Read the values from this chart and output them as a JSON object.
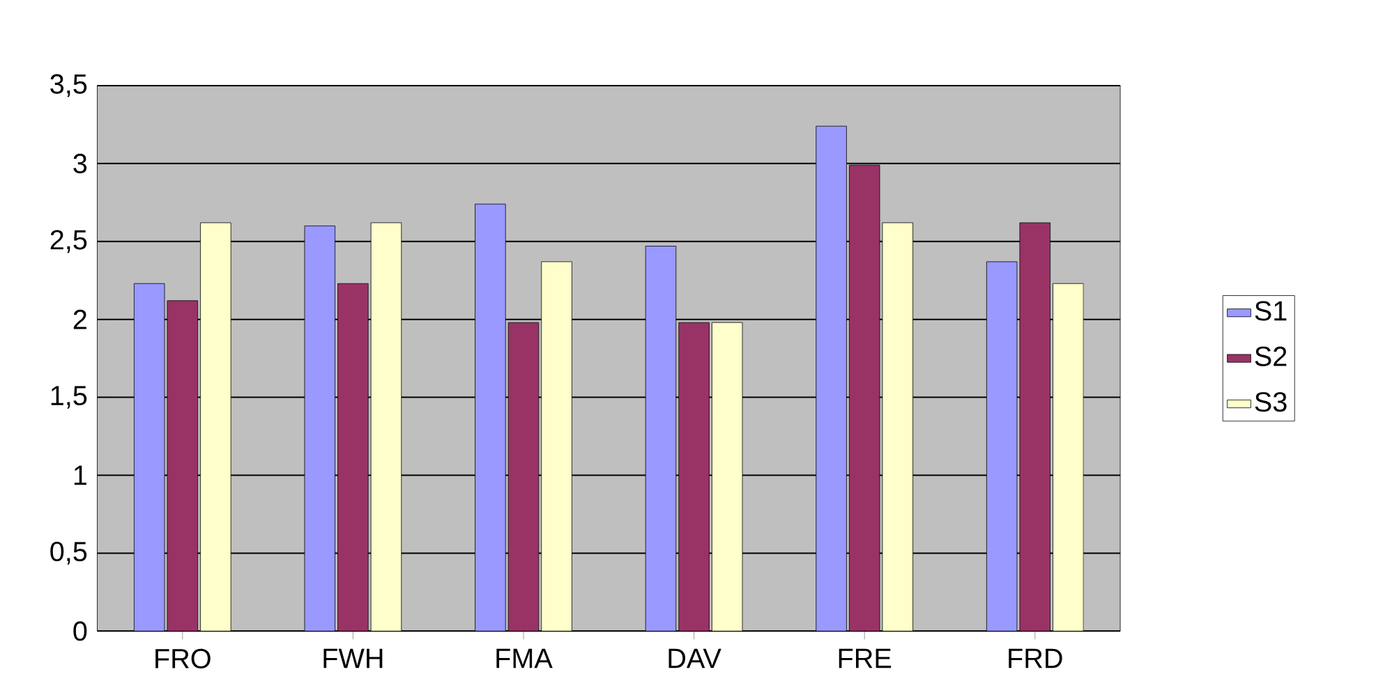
{
  "chart_data": {
    "type": "bar",
    "categories": [
      "FRO",
      "FWH",
      "FMA",
      "DAV",
      "FRE",
      "FRD"
    ],
    "series": [
      {
        "name": "S1",
        "color": "#9999ff",
        "values": [
          2.23,
          2.6,
          2.74,
          2.47,
          3.24,
          2.37
        ]
      },
      {
        "name": "S2",
        "color": "#993366",
        "values": [
          2.12,
          2.23,
          1.98,
          1.98,
          2.99,
          2.62
        ]
      },
      {
        "name": "S3",
        "color": "#ffffcc",
        "values": [
          2.62,
          2.62,
          2.37,
          1.98,
          2.62,
          2.23
        ]
      }
    ],
    "ylim": [
      0,
      3.5
    ],
    "yticks": [
      {
        "value": 0,
        "label": "0"
      },
      {
        "value": 0.5,
        "label": "0,5"
      },
      {
        "value": 1,
        "label": "1"
      },
      {
        "value": 1.5,
        "label": "1,5"
      },
      {
        "value": 2,
        "label": "2"
      },
      {
        "value": 2.5,
        "label": "2,5"
      },
      {
        "value": 3,
        "label": "3"
      },
      {
        "value": 3.5,
        "label": "3,5"
      }
    ],
    "grid": "y",
    "legend": "right"
  }
}
